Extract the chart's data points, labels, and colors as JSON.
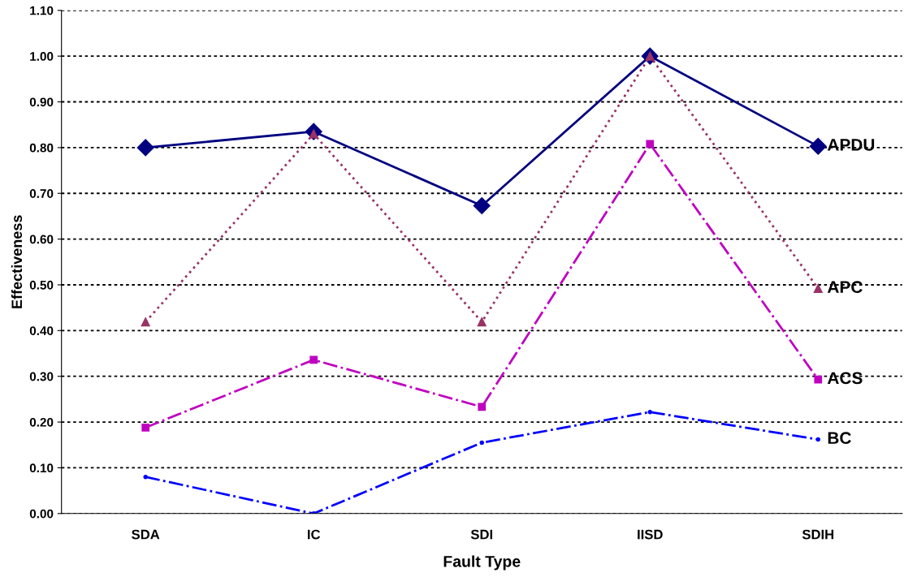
{
  "chart_data": {
    "type": "line",
    "xlabel": "Fault Type",
    "ylabel": "Effectiveness",
    "categories": [
      "SDA",
      "IC",
      "SDI",
      "IISD",
      "SDIH"
    ],
    "series": [
      {
        "name": "APDU",
        "color": "#000080",
        "marker": "diamond",
        "line_style": "solid",
        "values": [
          0.8,
          0.835,
          0.673,
          1.0,
          0.803
        ]
      },
      {
        "name": "APC",
        "color": "#993366",
        "marker": "triangle",
        "line_style": "dotted",
        "values": [
          0.419,
          0.83,
          0.419,
          1.0,
          0.492
        ]
      },
      {
        "name": "ACS",
        "color": "#c000c0",
        "marker": "square",
        "line_style": "dashdot",
        "values": [
          0.188,
          0.336,
          0.233,
          0.808,
          0.293
        ]
      },
      {
        "name": "BC",
        "color": "#0000ff",
        "marker": "circle",
        "line_style": "dashdot",
        "values": [
          0.08,
          0.0,
          0.155,
          0.222,
          0.162
        ]
      }
    ],
    "ylim": [
      0,
      1.1
    ],
    "yticks": [
      {
        "value": 0,
        "label": "0.00"
      },
      {
        "value": 0.1,
        "label": "0.10"
      },
      {
        "value": 0.2,
        "label": "0.20"
      },
      {
        "value": 0.3,
        "label": "0.30"
      },
      {
        "value": 0.4,
        "label": "0.40"
      },
      {
        "value": 0.5,
        "label": "0.50"
      },
      {
        "value": 0.6,
        "label": "0.60"
      },
      {
        "value": 0.7,
        "label": "0.70"
      },
      {
        "value": 0.8,
        "label": "0.80"
      },
      {
        "value": 0.9,
        "label": "0.90"
      },
      {
        "value": 1.0,
        "label": "1.00"
      },
      {
        "value": 1.1,
        "label": "1.10"
      }
    ],
    "grid": "y",
    "legend": false
  }
}
